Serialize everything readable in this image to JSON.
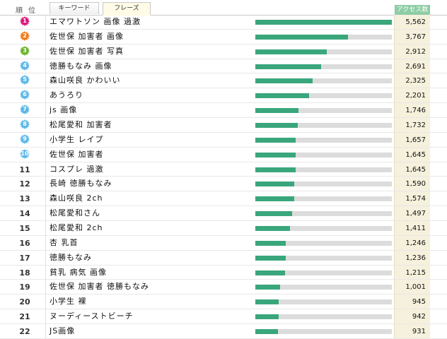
{
  "header": {
    "rank_label": "順位",
    "tab_keyword": "キーワード",
    "tab_phrase": "フレーズ",
    "access_label": "アクセス数"
  },
  "colors": {
    "bar": "#3aa67c",
    "badge_1": "#d81b7a",
    "badge_2": "#f07c1b",
    "badge_3": "#6bb22a",
    "badge_blue": "#5fb7e6"
  },
  "rows": [
    {
      "rank": "1",
      "phrase": "エマワトソン 画像 過激",
      "count": "5,562",
      "value": 5562
    },
    {
      "rank": "2",
      "phrase": "佐世保 加害者 画像",
      "count": "3,767",
      "value": 3767
    },
    {
      "rank": "3",
      "phrase": "佐世保 加害者 写真",
      "count": "2,912",
      "value": 2912
    },
    {
      "rank": "4",
      "phrase": "徳勝もなみ 画像",
      "count": "2,691",
      "value": 2691
    },
    {
      "rank": "5",
      "phrase": "森山咲良 かわいい",
      "count": "2,325",
      "value": 2325
    },
    {
      "rank": "6",
      "phrase": "あうろり",
      "count": "2,201",
      "value": 2201
    },
    {
      "rank": "7",
      "phrase": "js 画像",
      "count": "1,746",
      "value": 1746
    },
    {
      "rank": "8",
      "phrase": "松尾愛和 加害者",
      "count": "1,732",
      "value": 1732
    },
    {
      "rank": "9",
      "phrase": "小学生 レイプ",
      "count": "1,657",
      "value": 1657
    },
    {
      "rank": "10",
      "phrase": "佐世保 加害者",
      "count": "1,645",
      "value": 1645
    },
    {
      "rank": "11",
      "phrase": "コスプレ 過激",
      "count": "1,645",
      "value": 1645
    },
    {
      "rank": "12",
      "phrase": "長崎 徳勝もなみ",
      "count": "1,590",
      "value": 1590
    },
    {
      "rank": "13",
      "phrase": "森山咲良 2ch",
      "count": "1,574",
      "value": 1574
    },
    {
      "rank": "14",
      "phrase": "松尾愛和さん",
      "count": "1,497",
      "value": 1497
    },
    {
      "rank": "15",
      "phrase": "松尾愛和 2ch",
      "count": "1,411",
      "value": 1411
    },
    {
      "rank": "16",
      "phrase": "杏 乳首",
      "count": "1,246",
      "value": 1246
    },
    {
      "rank": "17",
      "phrase": "徳勝もなみ",
      "count": "1,236",
      "value": 1236
    },
    {
      "rank": "18",
      "phrase": "貧乳 病気 画像",
      "count": "1,215",
      "value": 1215
    },
    {
      "rank": "19",
      "phrase": "佐世保 加害者 徳勝もなみ",
      "count": "1,001",
      "value": 1001
    },
    {
      "rank": "20",
      "phrase": "小学生 裸",
      "count": "945",
      "value": 945
    },
    {
      "rank": "21",
      "phrase": "ヌーディーストビーチ",
      "count": "942",
      "value": 942
    },
    {
      "rank": "22",
      "phrase": "JS画像",
      "count": "931",
      "value": 931
    }
  ]
}
